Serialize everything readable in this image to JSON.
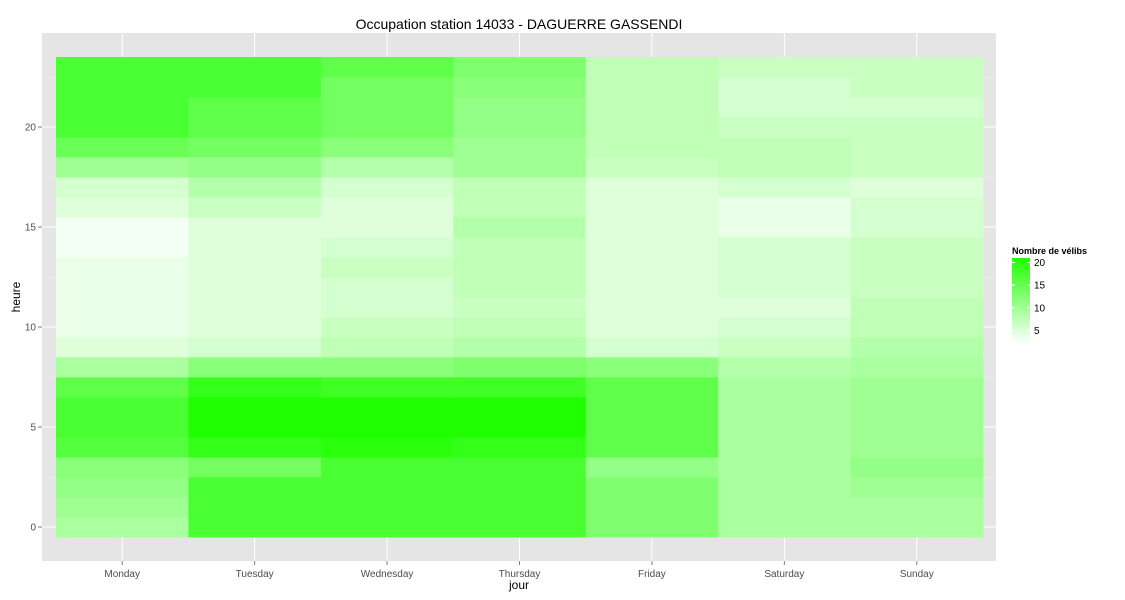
{
  "chart_data": {
    "type": "heatmap",
    "title": "Occupation station 14033 - DAGUERRE GASSENDI",
    "xlabel": "jour",
    "ylabel": "heure",
    "categories": [
      "Monday",
      "Tuesday",
      "Wednesday",
      "Thursday",
      "Friday",
      "Saturday",
      "Sunday"
    ],
    "hours": [
      0,
      1,
      2,
      3,
      4,
      5,
      6,
      7,
      8,
      9,
      10,
      11,
      12,
      13,
      14,
      15,
      16,
      17,
      18,
      19,
      20,
      21,
      22,
      23
    ],
    "y_ticks": [
      0,
      5,
      10,
      15,
      20
    ],
    "ylim": [
      -0.5,
      23.5
    ],
    "values": [
      [
        8,
        17,
        17,
        17,
        12,
        8,
        8
      ],
      [
        9,
        17,
        17,
        17,
        12,
        8,
        8
      ],
      [
        10,
        17,
        17,
        17,
        12,
        8,
        9
      ],
      [
        11,
        13,
        17,
        17,
        10,
        8,
        10
      ],
      [
        16,
        19,
        20,
        19,
        15,
        8,
        9
      ],
      [
        17,
        21,
        21,
        21,
        15,
        8,
        9
      ],
      [
        17,
        21,
        21,
        21,
        15,
        8,
        9
      ],
      [
        15,
        19,
        18,
        18,
        15,
        8,
        9
      ],
      [
        8,
        11,
        11,
        12,
        11,
        7,
        8
      ],
      [
        3,
        4,
        6,
        7,
        4,
        5,
        7
      ],
      [
        2,
        3,
        5,
        6,
        3,
        4,
        6
      ],
      [
        2,
        3,
        4,
        5,
        3,
        3,
        6
      ],
      [
        2,
        3,
        4,
        6,
        3,
        4,
        5
      ],
      [
        2,
        3,
        5,
        6,
        3,
        4,
        5
      ],
      [
        1,
        3,
        4,
        6,
        3,
        4,
        5
      ],
      [
        1,
        3,
        3,
        7,
        3,
        2,
        4
      ],
      [
        3,
        5,
        3,
        6,
        3,
        2,
        4
      ],
      [
        4,
        7,
        4,
        6,
        3,
        4,
        3
      ],
      [
        9,
        10,
        7,
        9,
        5,
        6,
        5
      ],
      [
        14,
        13,
        11,
        9,
        6,
        6,
        5
      ],
      [
        17,
        15,
        13,
        10,
        6,
        5,
        5
      ],
      [
        17,
        15,
        13,
        10,
        6,
        4,
        4
      ],
      [
        17,
        17,
        13,
        11,
        6,
        4,
        5
      ],
      [
        17,
        17,
        15,
        12,
        6,
        5,
        5
      ]
    ],
    "color_scale": {
      "low": "#ffffff",
      "high": "#1fff00",
      "min": 0,
      "max": 21
    },
    "legend": {
      "title": "Nombre de vélibs",
      "ticks": [
        5,
        10,
        15,
        20
      ],
      "placement": "right"
    },
    "panel_background": "#e5e5e5",
    "grid": true
  }
}
